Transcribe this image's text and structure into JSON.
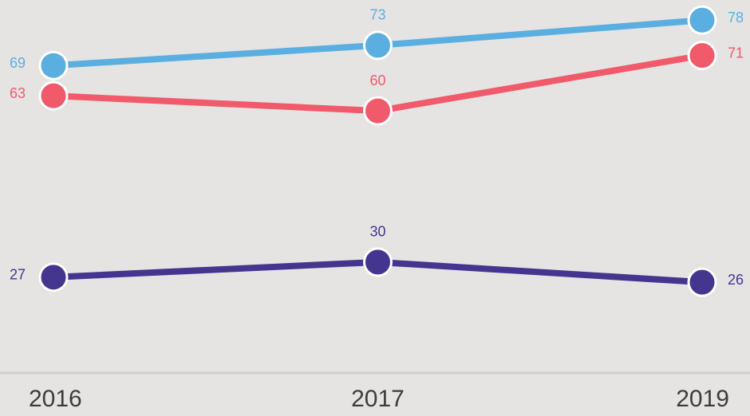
{
  "chart_data": {
    "type": "line",
    "categories": [
      "2016",
      "2017",
      "2019"
    ],
    "series": [
      {
        "color": "#5aafe0",
        "values": [
          69,
          73,
          78
        ]
      },
      {
        "color": "#f05a6a",
        "values": [
          63,
          60,
          71
        ]
      },
      {
        "color": "#44358f",
        "values": [
          27,
          30,
          26
        ]
      }
    ],
    "ylim": [
      8,
      82
    ]
  }
}
